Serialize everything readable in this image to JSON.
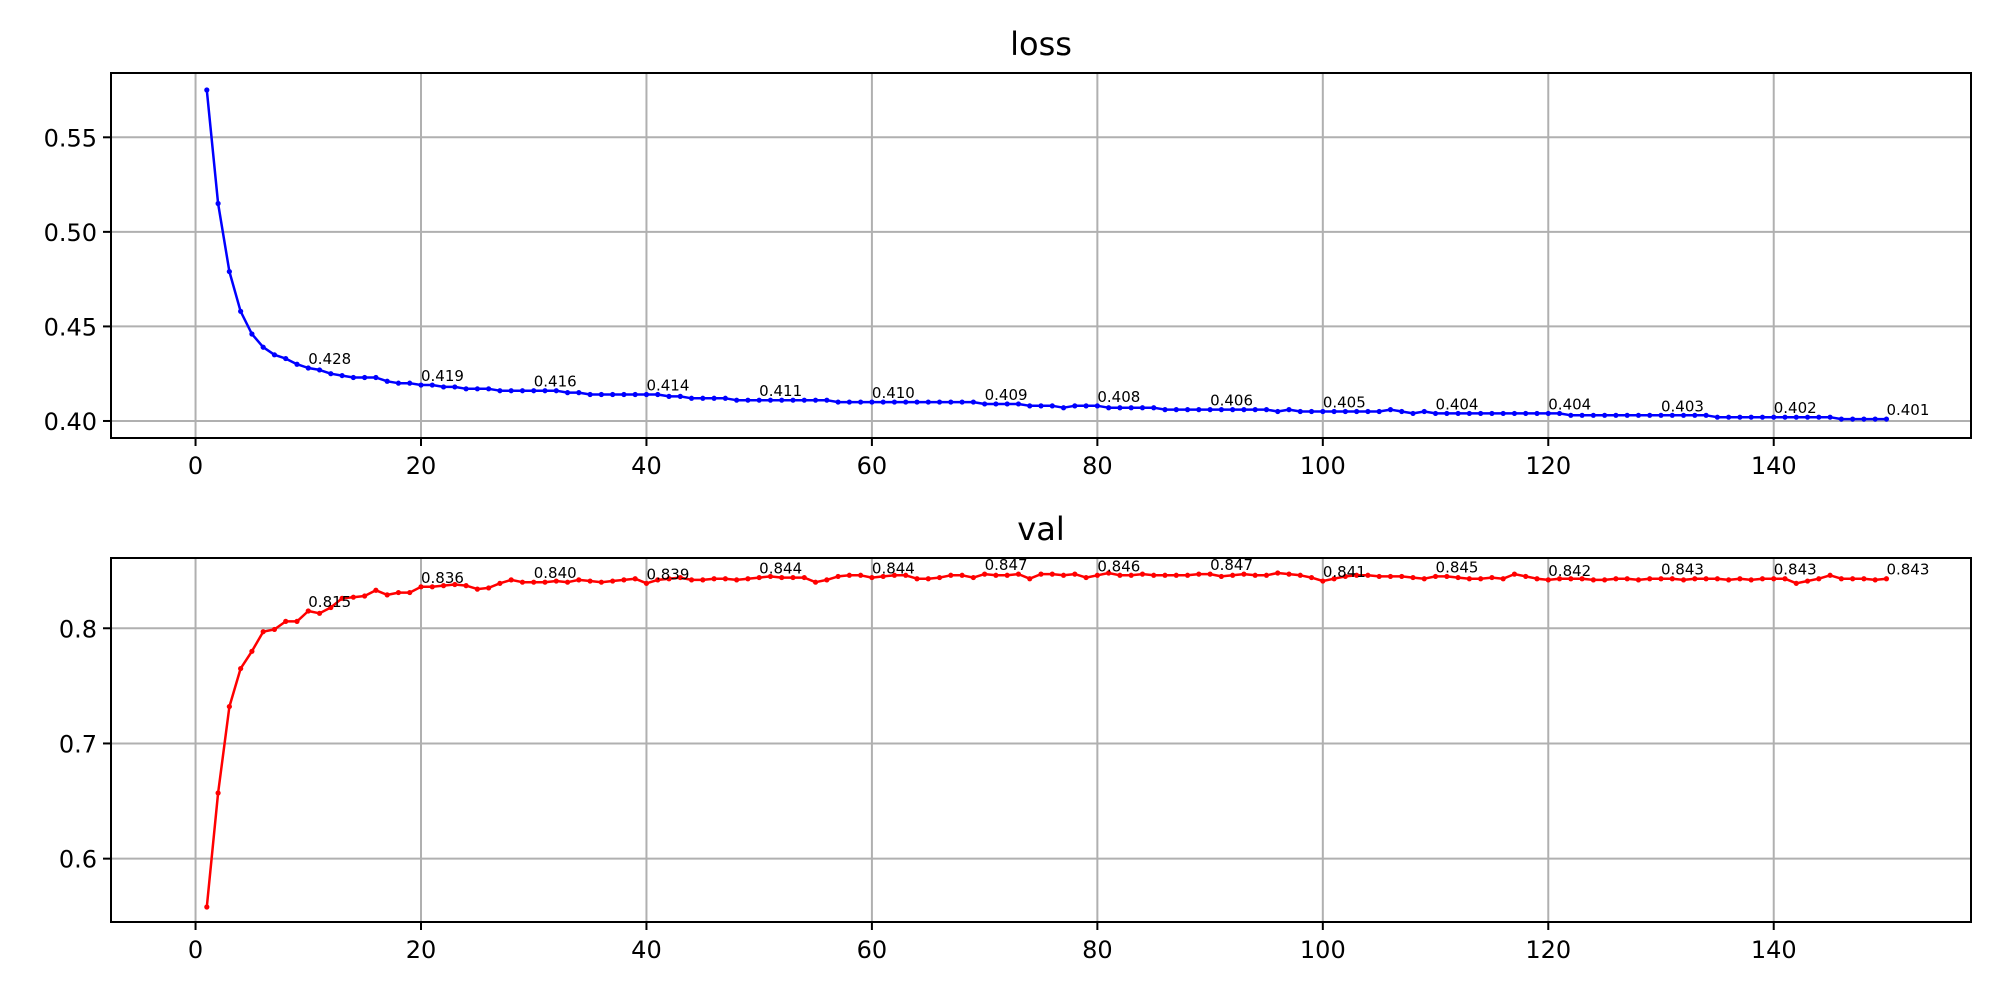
{
  "chart_data": [
    {
      "type": "line",
      "title": "loss",
      "xlabel": "",
      "ylabel": "",
      "xlim": [
        -7.5,
        157.5
      ],
      "ylim": [
        0.391,
        0.584
      ],
      "xticks": [
        0,
        20,
        40,
        60,
        80,
        100,
        120,
        140
      ],
      "yticks": [
        0.4,
        0.45,
        0.5,
        0.55
      ],
      "ytick_labels": [
        "0.40",
        "0.45",
        "0.50",
        "0.55"
      ],
      "grid": true,
      "series": [
        {
          "color": "#0000ff",
          "x": [
            1,
            2,
            3,
            4,
            5,
            6,
            7,
            8,
            9,
            10,
            11,
            12,
            13,
            14,
            15,
            16,
            17,
            18,
            19,
            20,
            21,
            22,
            23,
            24,
            25,
            26,
            27,
            28,
            29,
            30,
            31,
            32,
            33,
            34,
            35,
            36,
            37,
            38,
            39,
            40,
            41,
            42,
            43,
            44,
            45,
            46,
            47,
            48,
            49,
            50,
            51,
            52,
            53,
            54,
            55,
            56,
            57,
            58,
            59,
            60,
            61,
            62,
            63,
            64,
            65,
            66,
            67,
            68,
            69,
            70,
            71,
            72,
            73,
            74,
            75,
            76,
            77,
            78,
            79,
            80,
            81,
            82,
            83,
            84,
            85,
            86,
            87,
            88,
            89,
            90,
            91,
            92,
            93,
            94,
            95,
            96,
            97,
            98,
            99,
            100,
            101,
            102,
            103,
            104,
            105,
            106,
            107,
            108,
            109,
            110,
            111,
            112,
            113,
            114,
            115,
            116,
            117,
            118,
            119,
            120,
            121,
            122,
            123,
            124,
            125,
            126,
            127,
            128,
            129,
            130,
            131,
            132,
            133,
            134,
            135,
            136,
            137,
            138,
            139,
            140,
            141,
            142,
            143,
            144,
            145,
            146,
            147,
            148,
            149,
            150
          ],
          "y": [
            0.575,
            0.515,
            0.479,
            0.458,
            0.446,
            0.439,
            0.435,
            0.433,
            0.43,
            0.428,
            0.427,
            0.425,
            0.424,
            0.423,
            0.423,
            0.423,
            0.421,
            0.42,
            0.42,
            0.419,
            0.419,
            0.418,
            0.418,
            0.417,
            0.417,
            0.417,
            0.416,
            0.416,
            0.416,
            0.416,
            0.416,
            0.416,
            0.415,
            0.415,
            0.414,
            0.414,
            0.414,
            0.414,
            0.414,
            0.414,
            0.414,
            0.413,
            0.413,
            0.412,
            0.412,
            0.412,
            0.412,
            0.411,
            0.411,
            0.411,
            0.411,
            0.411,
            0.411,
            0.411,
            0.411,
            0.411,
            0.41,
            0.41,
            0.41,
            0.41,
            0.41,
            0.41,
            0.41,
            0.41,
            0.41,
            0.41,
            0.41,
            0.41,
            0.41,
            0.409,
            0.409,
            0.409,
            0.409,
            0.408,
            0.408,
            0.408,
            0.407,
            0.408,
            0.408,
            0.408,
            0.407,
            0.407,
            0.407,
            0.407,
            0.407,
            0.406,
            0.406,
            0.406,
            0.406,
            0.406,
            0.406,
            0.406,
            0.406,
            0.406,
            0.406,
            0.405,
            0.406,
            0.405,
            0.405,
            0.405,
            0.405,
            0.405,
            0.405,
            0.405,
            0.405,
            0.406,
            0.405,
            0.404,
            0.405,
            0.404,
            0.404,
            0.404,
            0.404,
            0.404,
            0.404,
            0.404,
            0.404,
            0.404,
            0.404,
            0.404,
            0.404,
            0.403,
            0.403,
            0.403,
            0.403,
            0.403,
            0.403,
            0.403,
            0.403,
            0.403,
            0.403,
            0.403,
            0.403,
            0.403,
            0.402,
            0.402,
            0.402,
            0.402,
            0.402,
            0.402,
            0.402,
            0.402,
            0.402,
            0.402,
            0.402,
            0.401,
            0.401,
            0.401,
            0.401,
            0.401
          ]
        }
      ],
      "annotations": [
        {
          "x": 10,
          "y": 0.428,
          "text": "0.428"
        },
        {
          "x": 20,
          "y": 0.419,
          "text": "0.419"
        },
        {
          "x": 30,
          "y": 0.416,
          "text": "0.416"
        },
        {
          "x": 40,
          "y": 0.414,
          "text": "0.414"
        },
        {
          "x": 50,
          "y": 0.411,
          "text": "0.411"
        },
        {
          "x": 60,
          "y": 0.41,
          "text": "0.410"
        },
        {
          "x": 70,
          "y": 0.409,
          "text": "0.409"
        },
        {
          "x": 80,
          "y": 0.408,
          "text": "0.408"
        },
        {
          "x": 90,
          "y": 0.406,
          "text": "0.406"
        },
        {
          "x": 100,
          "y": 0.405,
          "text": "0.405"
        },
        {
          "x": 110,
          "y": 0.404,
          "text": "0.404"
        },
        {
          "x": 120,
          "y": 0.404,
          "text": "0.404"
        },
        {
          "x": 130,
          "y": 0.403,
          "text": "0.403"
        },
        {
          "x": 140,
          "y": 0.402,
          "text": "0.402"
        },
        {
          "x": 150,
          "y": 0.401,
          "text": "0.401"
        }
      ]
    },
    {
      "type": "line",
      "title": "val",
      "xlabel": "",
      "ylabel": "",
      "xlim": [
        -7.5,
        157.5
      ],
      "ylim": [
        0.545,
        0.861
      ],
      "xticks": [
        0,
        20,
        40,
        60,
        80,
        100,
        120,
        140
      ],
      "yticks": [
        0.6,
        0.7,
        0.8
      ],
      "ytick_labels": [
        "0.6",
        "0.7",
        "0.8"
      ],
      "grid": true,
      "series": [
        {
          "color": "#ff0000",
          "x": [
            1,
            2,
            3,
            4,
            5,
            6,
            7,
            8,
            9,
            10,
            11,
            12,
            13,
            14,
            15,
            16,
            17,
            18,
            19,
            20,
            21,
            22,
            23,
            24,
            25,
            26,
            27,
            28,
            29,
            30,
            31,
            32,
            33,
            34,
            35,
            36,
            37,
            38,
            39,
            40,
            41,
            42,
            43,
            44,
            45,
            46,
            47,
            48,
            49,
            50,
            51,
            52,
            53,
            54,
            55,
            56,
            57,
            58,
            59,
            60,
            61,
            62,
            63,
            64,
            65,
            66,
            67,
            68,
            69,
            70,
            71,
            72,
            73,
            74,
            75,
            76,
            77,
            78,
            79,
            80,
            81,
            82,
            83,
            84,
            85,
            86,
            87,
            88,
            89,
            90,
            91,
            92,
            93,
            94,
            95,
            96,
            97,
            98,
            99,
            100,
            101,
            102,
            103,
            104,
            105,
            106,
            107,
            108,
            109,
            110,
            111,
            112,
            113,
            114,
            115,
            116,
            117,
            118,
            119,
            120,
            121,
            122,
            123,
            124,
            125,
            126,
            127,
            128,
            129,
            130,
            131,
            132,
            133,
            134,
            135,
            136,
            137,
            138,
            139,
            140,
            141,
            142,
            143,
            144,
            145,
            146,
            147,
            148,
            149,
            150
          ],
          "y": [
            0.558,
            0.657,
            0.732,
            0.765,
            0.78,
            0.797,
            0.799,
            0.806,
            0.806,
            0.815,
            0.813,
            0.818,
            0.826,
            0.827,
            0.828,
            0.833,
            0.829,
            0.831,
            0.831,
            0.836,
            0.836,
            0.837,
            0.838,
            0.837,
            0.834,
            0.835,
            0.839,
            0.842,
            0.84,
            0.84,
            0.84,
            0.841,
            0.84,
            0.842,
            0.841,
            0.84,
            0.841,
            0.842,
            0.843,
            0.839,
            0.842,
            0.843,
            0.844,
            0.842,
            0.842,
            0.843,
            0.843,
            0.842,
            0.843,
            0.844,
            0.845,
            0.844,
            0.844,
            0.844,
            0.84,
            0.842,
            0.845,
            0.846,
            0.846,
            0.844,
            0.845,
            0.846,
            0.846,
            0.843,
            0.843,
            0.844,
            0.846,
            0.846,
            0.844,
            0.847,
            0.846,
            0.846,
            0.847,
            0.843,
            0.847,
            0.847,
            0.846,
            0.847,
            0.844,
            0.846,
            0.848,
            0.846,
            0.846,
            0.847,
            0.846,
            0.846,
            0.846,
            0.846,
            0.847,
            0.847,
            0.845,
            0.846,
            0.847,
            0.846,
            0.846,
            0.848,
            0.847,
            0.846,
            0.844,
            0.841,
            0.843,
            0.845,
            0.846,
            0.846,
            0.845,
            0.845,
            0.845,
            0.844,
            0.843,
            0.845,
            0.845,
            0.844,
            0.843,
            0.843,
            0.844,
            0.843,
            0.847,
            0.845,
            0.843,
            0.842,
            0.843,
            0.843,
            0.843,
            0.842,
            0.842,
            0.843,
            0.843,
            0.842,
            0.843,
            0.843,
            0.843,
            0.842,
            0.843,
            0.843,
            0.843,
            0.842,
            0.843,
            0.842,
            0.843,
            0.843,
            0.843,
            0.839,
            0.841,
            0.843,
            0.846,
            0.843,
            0.843,
            0.843,
            0.842,
            0.843
          ]
        }
      ],
      "annotations": [
        {
          "x": 10,
          "y": 0.815,
          "text": "0.815"
        },
        {
          "x": 20,
          "y": 0.836,
          "text": "0.836"
        },
        {
          "x": 30,
          "y": 0.84,
          "text": "0.840"
        },
        {
          "x": 40,
          "y": 0.839,
          "text": "0.839"
        },
        {
          "x": 50,
          "y": 0.844,
          "text": "0.844"
        },
        {
          "x": 60,
          "y": 0.844,
          "text": "0.844"
        },
        {
          "x": 70,
          "y": 0.847,
          "text": "0.847"
        },
        {
          "x": 80,
          "y": 0.846,
          "text": "0.846"
        },
        {
          "x": 90,
          "y": 0.847,
          "text": "0.847"
        },
        {
          "x": 100,
          "y": 0.841,
          "text": "0.841"
        },
        {
          "x": 110,
          "y": 0.845,
          "text": "0.845"
        },
        {
          "x": 120,
          "y": 0.842,
          "text": "0.842"
        },
        {
          "x": 130,
          "y": 0.843,
          "text": "0.843"
        },
        {
          "x": 140,
          "y": 0.843,
          "text": "0.843"
        },
        {
          "x": 150,
          "y": 0.843,
          "text": "0.843"
        }
      ]
    }
  ]
}
